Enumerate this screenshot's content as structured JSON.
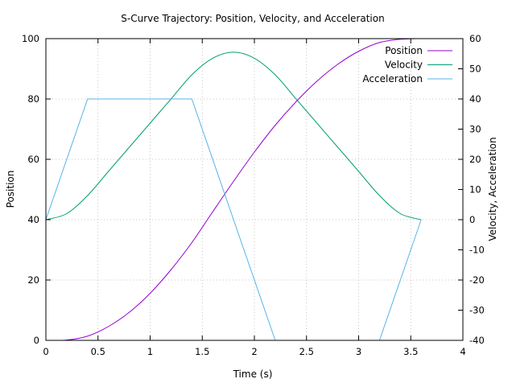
{
  "chart_data": {
    "type": "line",
    "title": "S-Curve Trajectory: Position, Velocity, and Acceleration",
    "xlabel": "Time (s)",
    "ylabel": "Position",
    "y2label": "Velocity, Acceleration",
    "xlim": [
      0,
      4
    ],
    "ylim": [
      0,
      100
    ],
    "y2lim": [
      -40,
      60
    ],
    "xticks": [
      0,
      0.5,
      1,
      1.5,
      2,
      2.5,
      3,
      3.5,
      4
    ],
    "xtick_labels": [
      "0",
      "0.5",
      "1",
      "1.5",
      "2",
      "2.5",
      "3",
      "3.5",
      "4"
    ],
    "yticks": [
      0,
      20,
      40,
      60,
      80,
      100
    ],
    "ytick_labels": [
      "0",
      "20",
      "40",
      "60",
      "80",
      "100"
    ],
    "y2ticks": [
      -40,
      -30,
      -20,
      -10,
      0,
      10,
      20,
      30,
      40,
      50,
      60
    ],
    "y2tick_labels": [
      "-40",
      "-30",
      "-20",
      "-10",
      "0",
      "10",
      "20",
      "30",
      "40",
      "50",
      "60"
    ],
    "grid": true,
    "legend_position": "top-right",
    "series": [
      {
        "name": "Position",
        "axis": "y",
        "color": "#9400d3",
        "x": [
          0,
          0.2,
          0.4,
          0.6,
          0.8,
          1.0,
          1.2,
          1.4,
          1.6,
          1.8,
          2.0,
          2.2,
          2.4,
          2.6,
          2.8,
          3.0,
          3.2,
          3.4,
          3.6
        ],
        "y": [
          0,
          0.1,
          1.4,
          4.6,
          9.3,
          15.6,
          23.4,
          32.4,
          42.6,
          52.7,
          62.4,
          71.3,
          79.1,
          85.9,
          91.5,
          95.8,
          98.7,
          99.8,
          100
        ]
      },
      {
        "name": "Velocity",
        "axis": "y2",
        "color": "#009e73",
        "x": [
          0,
          0.2,
          0.4,
          0.6,
          0.8,
          1.0,
          1.2,
          1.4,
          1.6,
          1.8,
          2.0,
          2.2,
          2.4,
          2.6,
          2.8,
          3.0,
          3.2,
          3.4,
          3.6
        ],
        "y": [
          0,
          2,
          8,
          16,
          24,
          32,
          40,
          48,
          53.5,
          55.5,
          53.5,
          48,
          40,
          32,
          24,
          16,
          8,
          2,
          0
        ]
      },
      {
        "name": "Acceleration",
        "axis": "y2",
        "color": "#56b4e9",
        "x": [
          0,
          0.4,
          1.4,
          2.2,
          3.2,
          3.6
        ],
        "y": [
          0,
          40,
          40,
          -40,
          -40,
          0
        ]
      }
    ]
  }
}
